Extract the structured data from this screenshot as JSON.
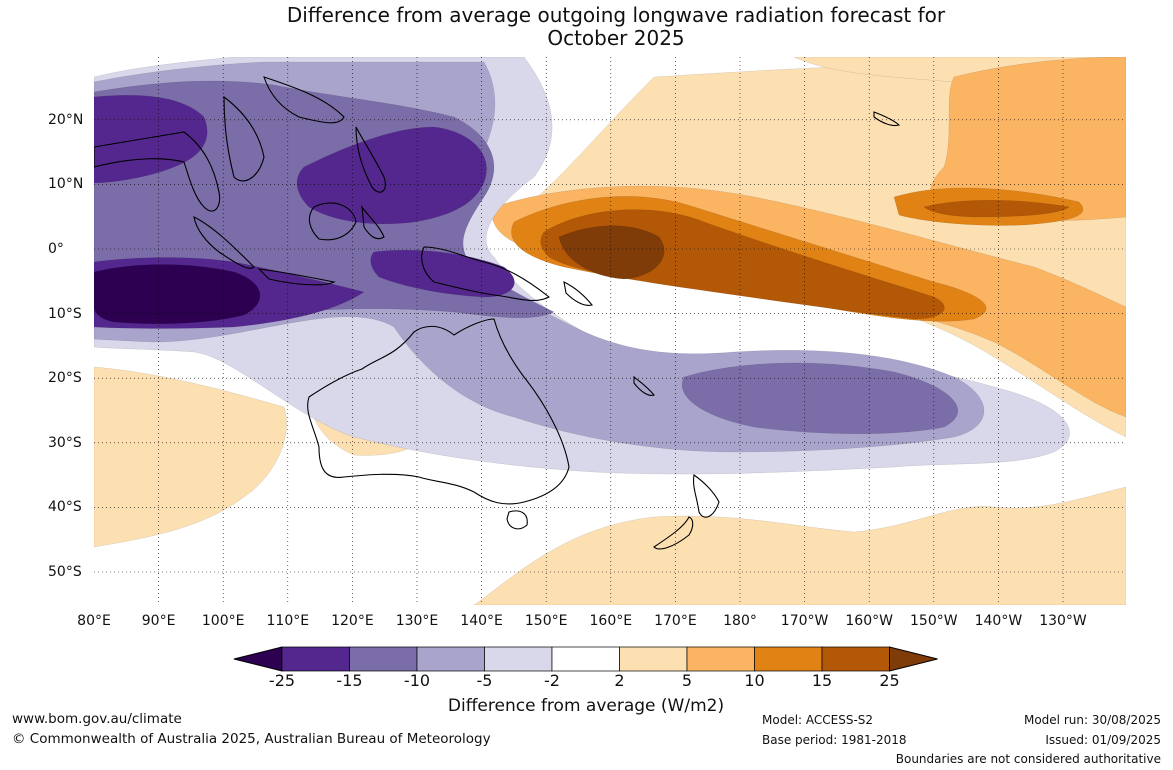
{
  "title": {
    "line1": "Difference from average outgoing longwave radiation forecast for",
    "line2": "October 2025"
  },
  "map": {
    "lon_labels": [
      "80°E",
      "90°E",
      "100°E",
      "110°E",
      "120°E",
      "130°E",
      "140°E",
      "150°E",
      "160°E",
      "170°E",
      "180°",
      "170°W",
      "160°W",
      "150°W",
      "140°W",
      "130°W"
    ],
    "lat_labels": [
      "20°N",
      "10°N",
      "0°",
      "10°S",
      "20°S",
      "30°S",
      "40°S",
      "50°S"
    ],
    "colors": {
      "c_lt_-25": "#2d0052",
      "c_-25_-15": "#54278f",
      "c_-15_-10": "#7b6da8",
      "c_-10_-5": "#a9a4cc",
      "c_-5_-2": "#d8d8ea",
      "c_-2_2": "#ffffff",
      "c_2_5": "#fde0b2",
      "c_5_10": "#fbb461",
      "c_10_15": "#e08214",
      "c_15_25": "#b35806",
      "c_gt_25": "#7f3b08",
      "land_outline": "#000000",
      "boundary": "#808080"
    }
  },
  "colorbar": {
    "tick_labels": [
      "-25",
      "-15",
      "-10",
      "-5",
      "-2",
      "2",
      "5",
      "10",
      "15",
      "25"
    ],
    "title": "Difference from average (W/m2)"
  },
  "footer": {
    "website": "www.bom.gov.au/climate",
    "copyright": "© Commonwealth of Australia 2025, Australian Bureau of Meteorology",
    "model": "Model: ACCESS-S2",
    "base_period": "Base period: 1981-2018",
    "model_run": "Model run: 30/08/2025",
    "issued": "Issued: 01/09/2025",
    "disclaimer": "Boundaries are not considered authoritative"
  }
}
